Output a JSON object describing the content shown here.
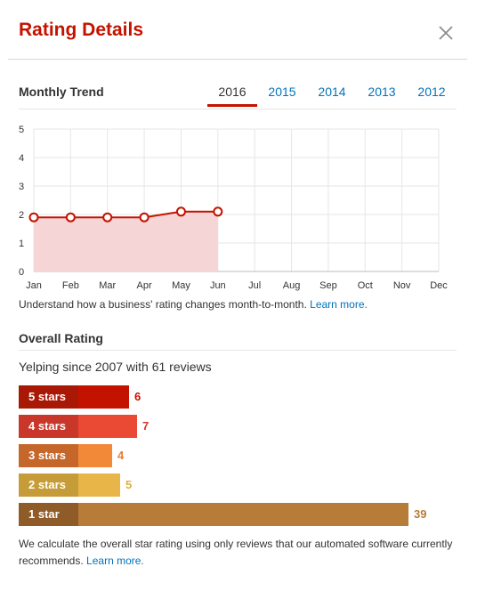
{
  "modal": {
    "title": "Rating Details",
    "close_icon": "close-icon"
  },
  "trend": {
    "heading": "Monthly Trend",
    "tabs": [
      {
        "label": "2016",
        "active": true
      },
      {
        "label": "2015",
        "active": false
      },
      {
        "label": "2014",
        "active": false
      },
      {
        "label": "2013",
        "active": false
      },
      {
        "label": "2012",
        "active": false
      }
    ],
    "note_text": "Understand how a business' rating changes month-to-month.",
    "note_link": "Learn more."
  },
  "chart_data": {
    "type": "line",
    "categories": [
      "Jan",
      "Feb",
      "Mar",
      "Apr",
      "May",
      "Jun",
      "Jul",
      "Aug",
      "Sep",
      "Oct",
      "Nov",
      "Dec"
    ],
    "series": [
      {
        "values": [
          1.9,
          1.9,
          1.9,
          1.9,
          2.1,
          2.1,
          null,
          null,
          null,
          null,
          null,
          null
        ]
      }
    ],
    "ylim": [
      0,
      5
    ],
    "yticks": [
      0,
      1,
      2,
      3,
      4,
      5
    ],
    "grid": true,
    "line_color": "#c41200",
    "fill_color": "#f5d5d5"
  },
  "overall": {
    "heading": "Overall Rating",
    "since_text": "Yelping since 2007 with 61 reviews",
    "bars": [
      {
        "label": "5 stars",
        "count": "6",
        "fraction": 0.154,
        "label_color": "#a91805",
        "fill_color": "#c41200",
        "count_color": "#c41200"
      },
      {
        "label": "4 stars",
        "count": "7",
        "fraction": 0.179,
        "label_color": "#c8372a",
        "fill_color": "#ea4a34",
        "count_color": "#d73a2a"
      },
      {
        "label": "3 stars",
        "count": "4",
        "fraction": 0.103,
        "label_color": "#c5662a",
        "fill_color": "#f28939",
        "count_color": "#e97c30"
      },
      {
        "label": "2 stars",
        "count": "5",
        "fraction": 0.128,
        "label_color": "#c69c38",
        "fill_color": "#e7b548",
        "count_color": "#e3ad3d"
      },
      {
        "label": "1 star",
        "count": "39",
        "fraction": 1.0,
        "label_color": "#8f5b29",
        "fill_color": "#b87c39",
        "count_color": "#b87c39"
      }
    ],
    "footer_text": "We calculate the overall star rating using only reviews that our automated software currently recommends.",
    "footer_link": "Learn more."
  }
}
